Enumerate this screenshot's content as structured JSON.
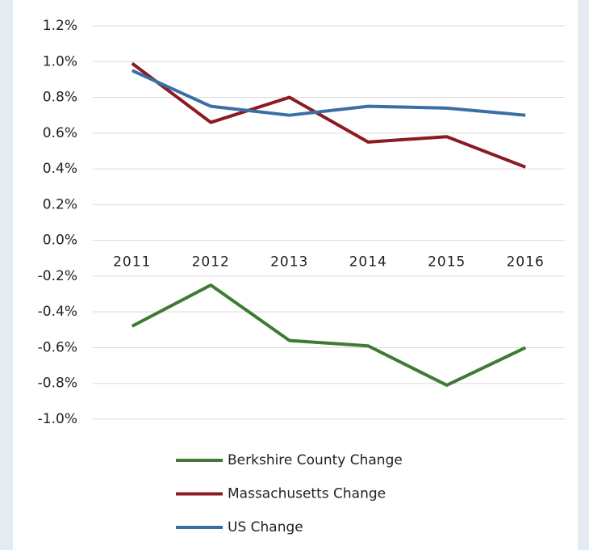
{
  "chart_data": {
    "type": "line",
    "categories": [
      "2011",
      "2012",
      "2013",
      "2014",
      "2015",
      "2016"
    ],
    "series": [
      {
        "name": "Berkshire County Change",
        "color": "#3f7a35",
        "values": [
          -0.48,
          -0.25,
          -0.56,
          -0.59,
          -0.81,
          -0.6
        ]
      },
      {
        "name": "Massachusetts Change",
        "color": "#8b1a22",
        "values": [
          0.99,
          0.66,
          0.8,
          0.55,
          0.58,
          0.41
        ]
      },
      {
        "name": "US Change",
        "color": "#3a6fa5",
        "values": [
          0.95,
          0.75,
          0.7,
          0.75,
          0.74,
          0.7
        ]
      }
    ],
    "ylim": [
      -1.0,
      1.2
    ],
    "yticks": [
      {
        "value": -1.0,
        "label": "-1.0%"
      },
      {
        "value": -0.8,
        "label": "-0.8%"
      },
      {
        "value": -0.6,
        "label": "-0.6%"
      },
      {
        "value": -0.4,
        "label": "-0.4%"
      },
      {
        "value": -0.2,
        "label": "-0.2%"
      },
      {
        "value": 0.0,
        "label": "0.0%"
      },
      {
        "value": 0.2,
        "label": "0.2%"
      },
      {
        "value": 0.4,
        "label": "0.4%"
      },
      {
        "value": 0.6,
        "label": "0.6%"
      },
      {
        "value": 0.8,
        "label": "0.8%"
      },
      {
        "value": 1.0,
        "label": "1.0%"
      },
      {
        "value": 1.2,
        "label": "1.2%"
      }
    ],
    "grid": true
  }
}
